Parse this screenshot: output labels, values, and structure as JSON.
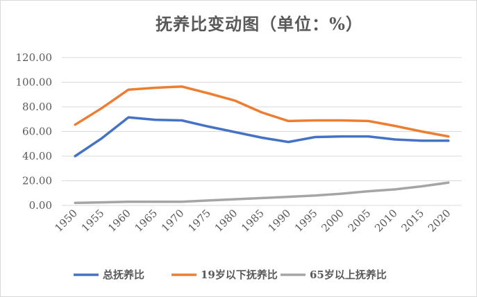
{
  "chart_data": {
    "type": "line",
    "title": "抚养比变动图（单位：%）",
    "x": [
      "1950",
      "1955",
      "1960",
      "1965",
      "1970",
      "1975",
      "1980",
      "1985",
      "1990",
      "1995",
      "2000",
      "2005",
      "2010",
      "2015",
      "2020"
    ],
    "y_ticks": [
      "0.00",
      "20.00",
      "40.00",
      "60.00",
      "80.00",
      "100.00",
      "120.00"
    ],
    "ylim": [
      0,
      120
    ],
    "grid": true,
    "legend_position": "bottom",
    "series": [
      {
        "name": "总抚养比",
        "color": "#4472c4",
        "values": [
          40.0,
          54.5,
          71.5,
          69.5,
          69.0,
          64.0,
          59.5,
          55.0,
          51.5,
          55.5,
          56.0,
          56.0,
          53.5,
          52.5,
          52.5
        ]
      },
      {
        "name": "19岁以下抚养比",
        "color": "#ed7d31",
        "values": [
          65.5,
          79.0,
          94.0,
          95.5,
          96.5,
          91.0,
          85.0,
          75.5,
          68.5,
          69.0,
          69.0,
          68.5,
          64.5,
          60.0,
          56.0
        ]
      },
      {
        "name": "65岁以上抚养比",
        "color": "#a5a5a5",
        "values": [
          2.0,
          2.5,
          3.0,
          3.0,
          3.0,
          4.0,
          5.0,
          6.0,
          7.0,
          8.0,
          9.5,
          11.5,
          13.0,
          15.5,
          18.5
        ]
      }
    ]
  }
}
